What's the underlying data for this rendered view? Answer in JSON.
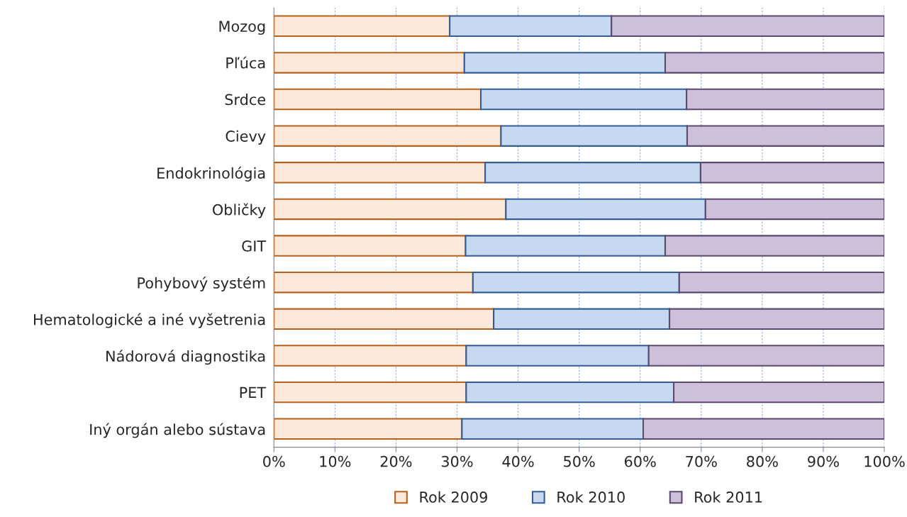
{
  "chart_data": {
    "type": "bar",
    "orientation": "horizontal",
    "stacked": true,
    "categories": [
      "Mozog",
      "Pľúca",
      "Srdce",
      "Cievy",
      "Endokrinológia",
      "Obličky",
      "GIT",
      "Pohybový systém",
      "Hematologické a iné vyšetrenia",
      "Nádorová diagnostika",
      "PET",
      "Iný orgán alebo sústava"
    ],
    "series": [
      {
        "name": "Rok 2009",
        "color": "#fde9d9",
        "values": [
          28.8,
          31.2,
          33.9,
          37.2,
          34.6,
          38.0,
          31.4,
          32.6,
          36.0,
          31.5,
          31.5,
          30.8
        ]
      },
      {
        "name": "Rok 2010",
        "color": "#c6d9f1",
        "values": [
          26.5,
          32.9,
          33.7,
          30.5,
          35.3,
          32.7,
          32.7,
          33.8,
          28.8,
          29.9,
          34.0,
          29.7
        ]
      },
      {
        "name": "Rok 2011",
        "color": "#ccc0da",
        "values": [
          44.7,
          35.9,
          32.4,
          32.3,
          30.1,
          29.3,
          35.9,
          33.6,
          35.2,
          38.6,
          34.5,
          39.5
        ]
      }
    ],
    "xlim": [
      0,
      100
    ],
    "xticks": [
      {
        "value": 0,
        "label": "0%"
      },
      {
        "value": 10,
        "label": "10%"
      },
      {
        "value": 20,
        "label": "20%"
      },
      {
        "value": 30,
        "label": "30%"
      },
      {
        "value": 40,
        "label": "40%"
      },
      {
        "value": 50,
        "label": "50%"
      },
      {
        "value": 60,
        "label": "60%"
      },
      {
        "value": 70,
        "label": "70%"
      },
      {
        "value": 80,
        "label": "80%"
      },
      {
        "value": 90,
        "label": "90%"
      },
      {
        "value": 100,
        "label": "100%"
      }
    ],
    "grid": "x",
    "legend": "bottom"
  }
}
